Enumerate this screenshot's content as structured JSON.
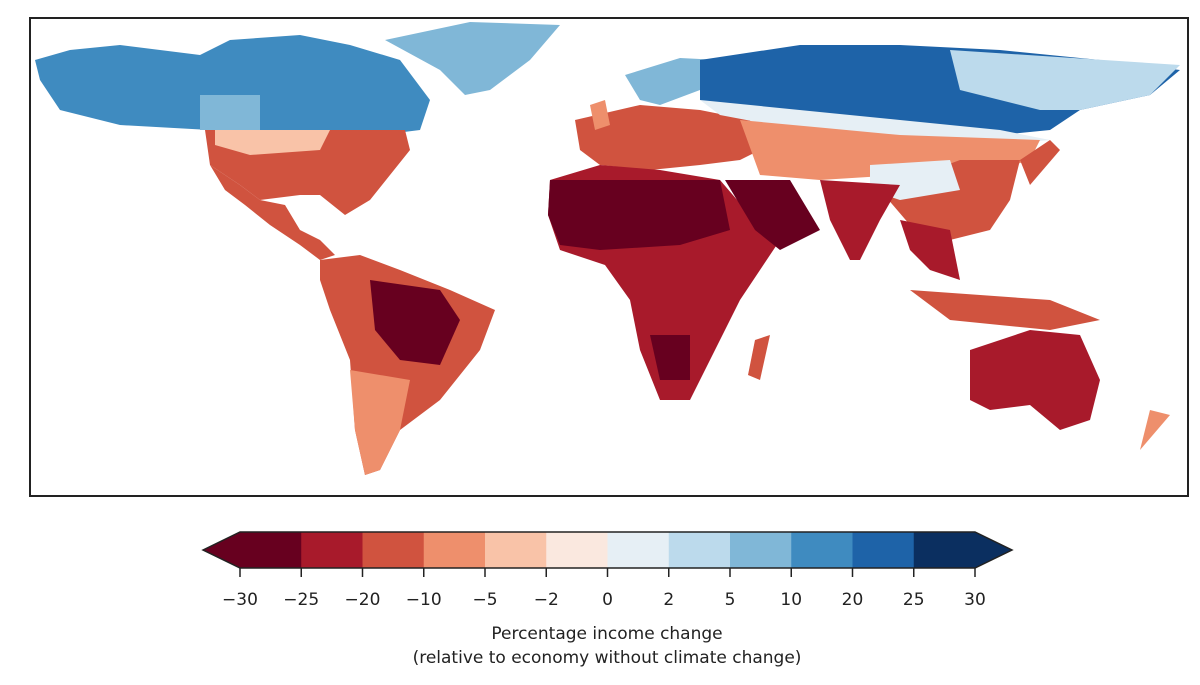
{
  "chart_data": {
    "type": "heatmap",
    "subtype": "choropleth-map",
    "projection": "equirectangular",
    "colorbar": {
      "ticks": [
        "−30",
        "−25",
        "−20",
        "−10",
        "−5",
        "−2",
        "0",
        "2",
        "5",
        "10",
        "20",
        "25",
        "30"
      ],
      "bounds": [
        -30,
        -25,
        -20,
        -10,
        -5,
        -2,
        0,
        2,
        5,
        10,
        20,
        25,
        30
      ],
      "colors": [
        "#67001f",
        "#a81a2b",
        "#d0533f",
        "#ee8f6c",
        "#f9c3a8",
        "#fae8df",
        "#e6eff5",
        "#bcdaec",
        "#80b7d7",
        "#3f8bc0",
        "#1e63a8",
        "#0b2f60"
      ],
      "extend": "both",
      "label_line1": "Percentage income change",
      "label_line2": "(relative to economy without climate change)"
    }
  }
}
